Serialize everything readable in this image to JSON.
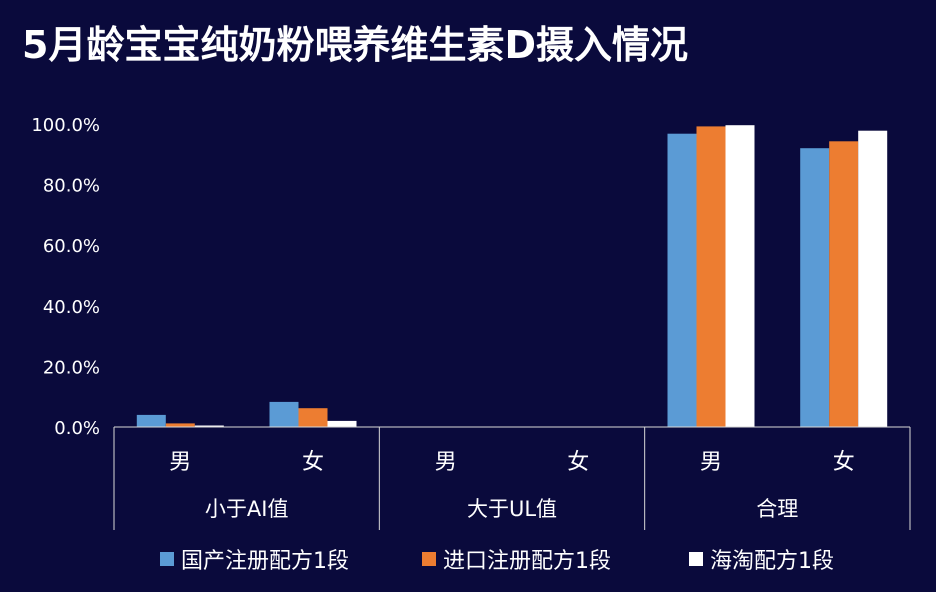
{
  "chart_data": {
    "type": "bar",
    "title": "5月龄宝宝纯奶粉喂养维生素D摄入情况",
    "groups": [
      {
        "label": "小于AI值",
        "categories": [
          "男",
          "女"
        ]
      },
      {
        "label": "大于UL值",
        "categories": [
          "男",
          "女"
        ]
      },
      {
        "label": "合理",
        "categories": [
          "男",
          "女"
        ]
      }
    ],
    "series": [
      {
        "name": "国产注册配方1段",
        "color": "#5b9bd5",
        "values": [
          4.0,
          8.3,
          0.0,
          0.0,
          96.8,
          92.0
        ]
      },
      {
        "name": "进口注册配方1段",
        "color": "#ed7d31",
        "values": [
          1.2,
          6.2,
          0.0,
          0.0,
          99.2,
          94.3
        ]
      },
      {
        "name": "海淘配方1段",
        "color": "#ffffff",
        "values": [
          0.5,
          2.0,
          0.0,
          0.0,
          99.6,
          97.8
        ]
      }
    ],
    "y_ticks": [
      "0.0%",
      "20.0%",
      "40.0%",
      "60.0%",
      "80.0%",
      "100.0%"
    ],
    "ylim": [
      0,
      100
    ],
    "ylabel": "",
    "xlabel": "",
    "grid": false,
    "legend_position": "bottom"
  }
}
